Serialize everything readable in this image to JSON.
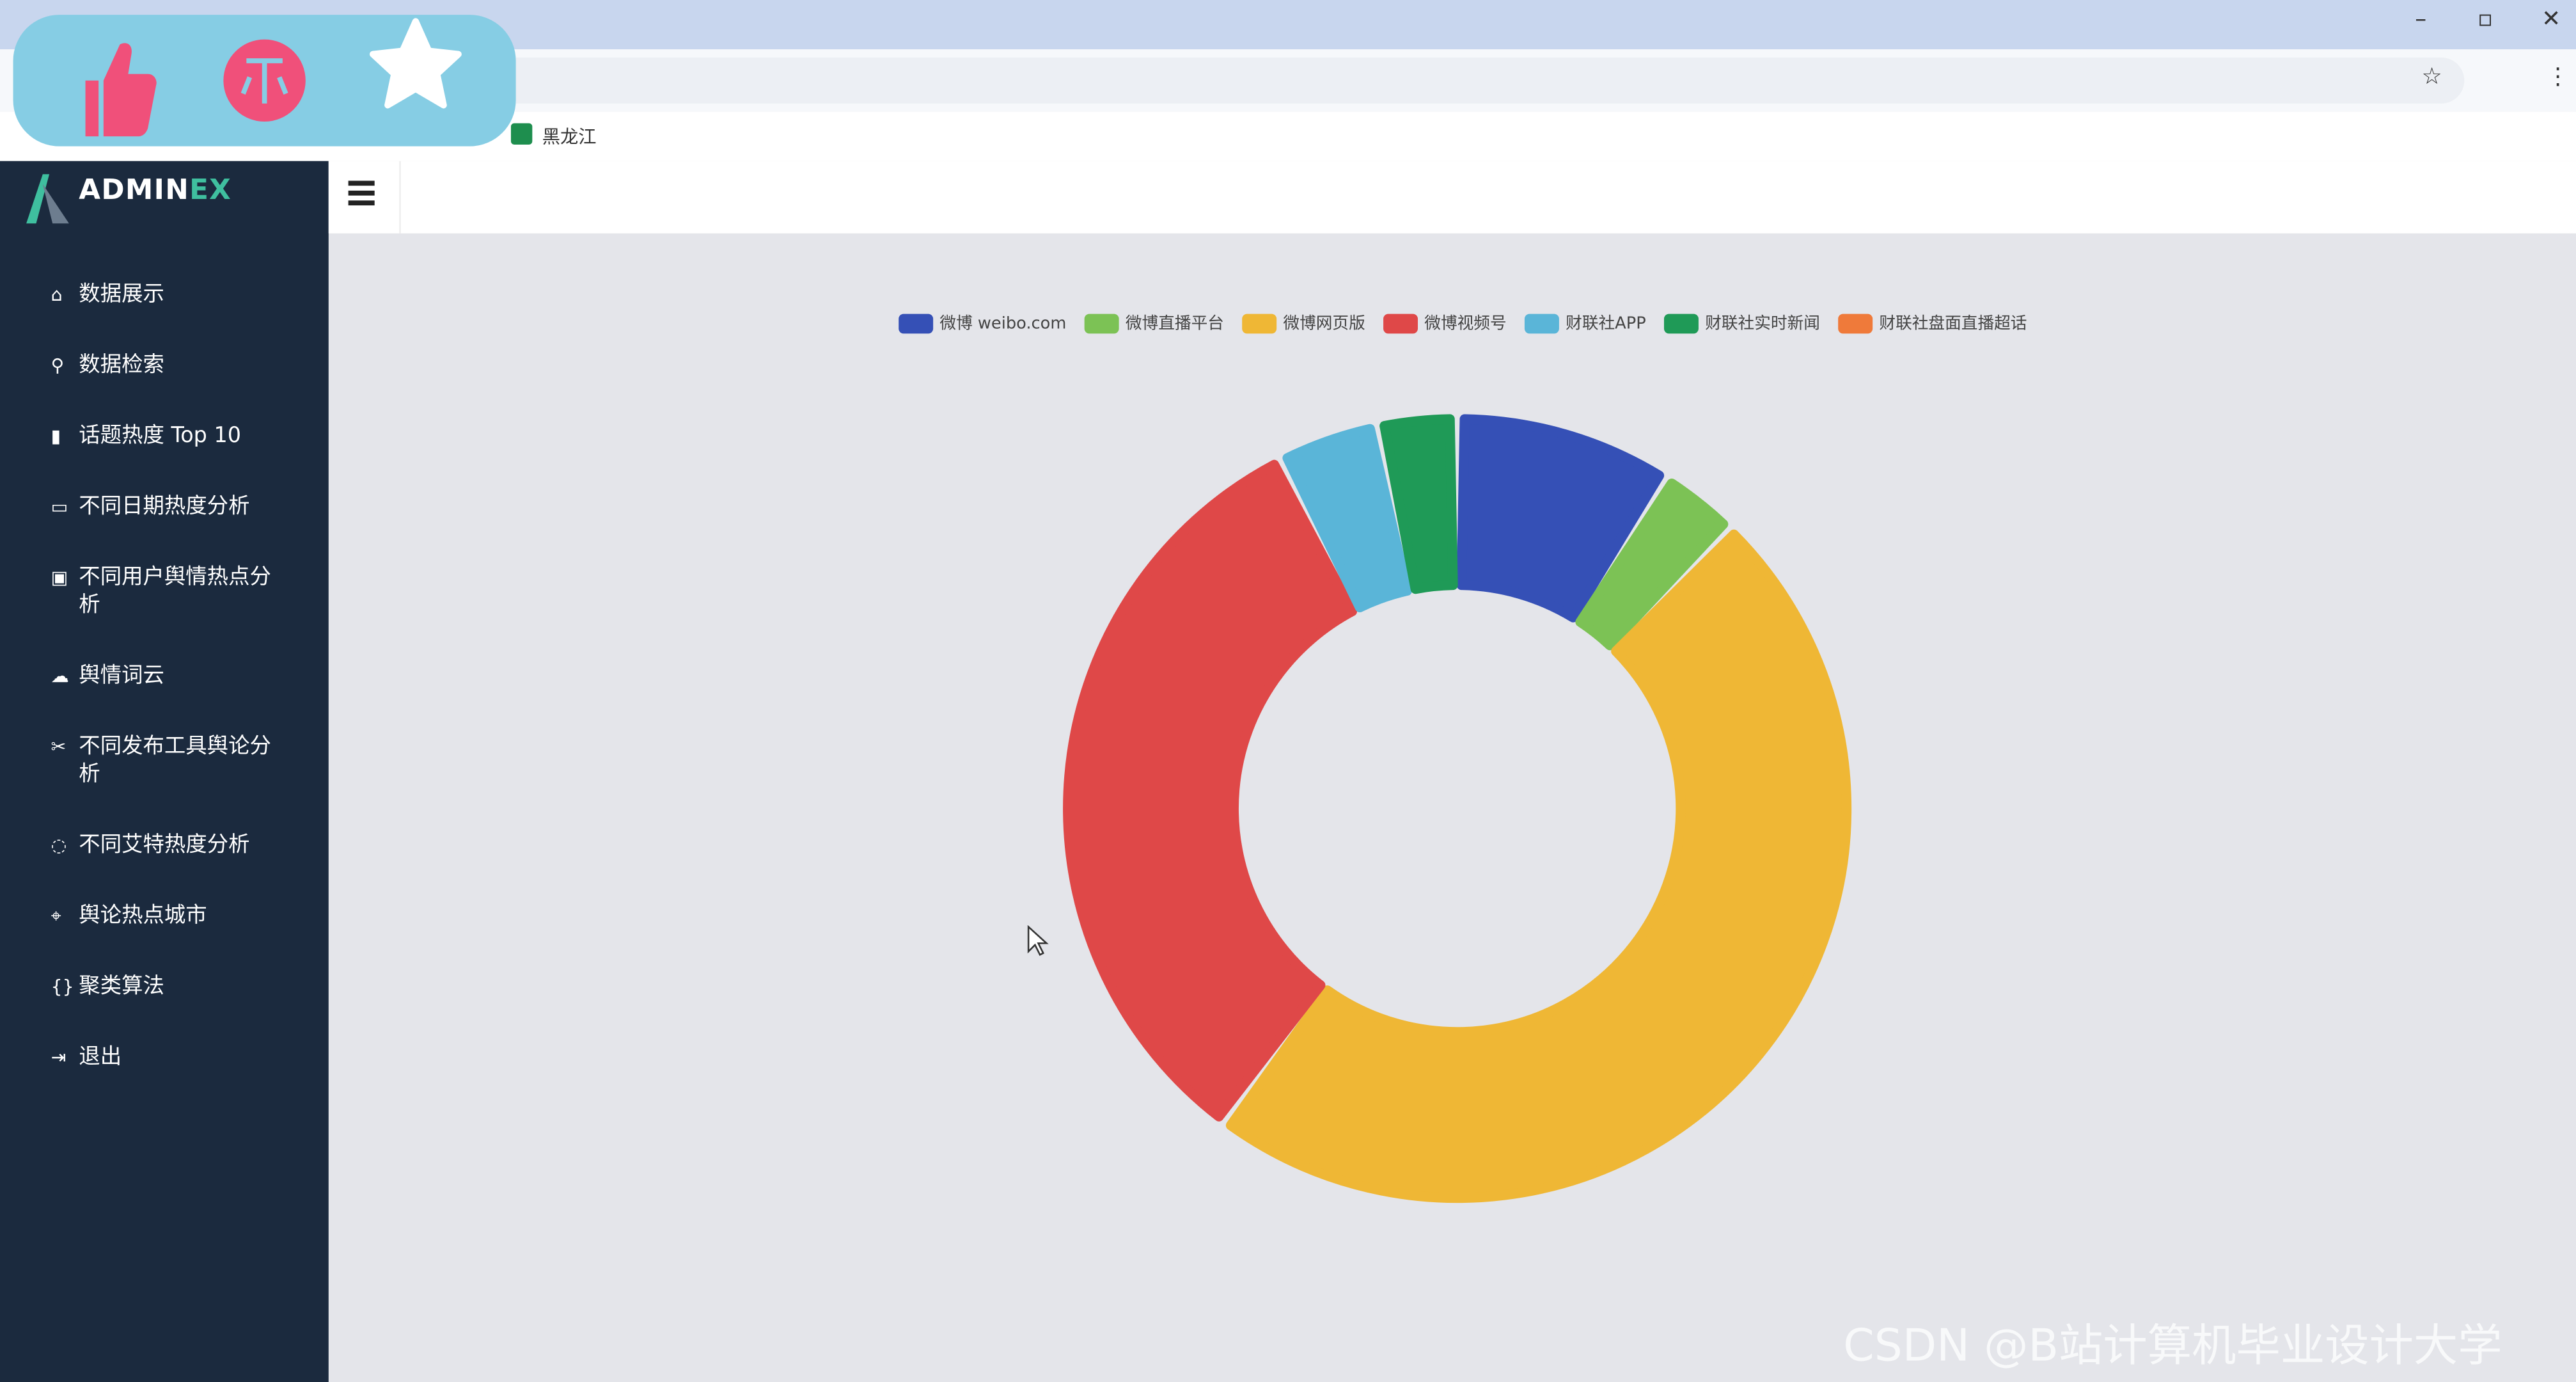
{
  "browser": {
    "bookmark": "黑龙江"
  },
  "sidebar": {
    "logo_main": "ADMIN",
    "logo_accent": "EX",
    "menu": [
      "数据展示",
      "数据检索",
      "话题热度 Top 10",
      "不同日期热度分析",
      "不同用户舆情热点分析",
      "舆情词云",
      "不同发布工具舆论分析",
      "不同艾特热度分析",
      "舆论热点城市",
      "聚类算法",
      "退出"
    ]
  },
  "chart_data": {
    "type": "pie",
    "donut": true,
    "categories": [
      "微博 weibo.com",
      "微博直播平台",
      "微博网页版",
      "微博视频号",
      "财联社APP",
      "财联社实时新闻",
      "财联社盘面直播超话"
    ],
    "values": [
      30,
      11,
      160,
      108,
      14,
      11,
      0
    ],
    "colors": [
      "#3550b6",
      "#7cc255",
      "#efb735",
      "#df4848",
      "#5ab5d8",
      "#1f9a57",
      "#ef7a3a"
    ],
    "legend": "top"
  },
  "watermark": "CSDN @B站计算机毕业设计大学"
}
